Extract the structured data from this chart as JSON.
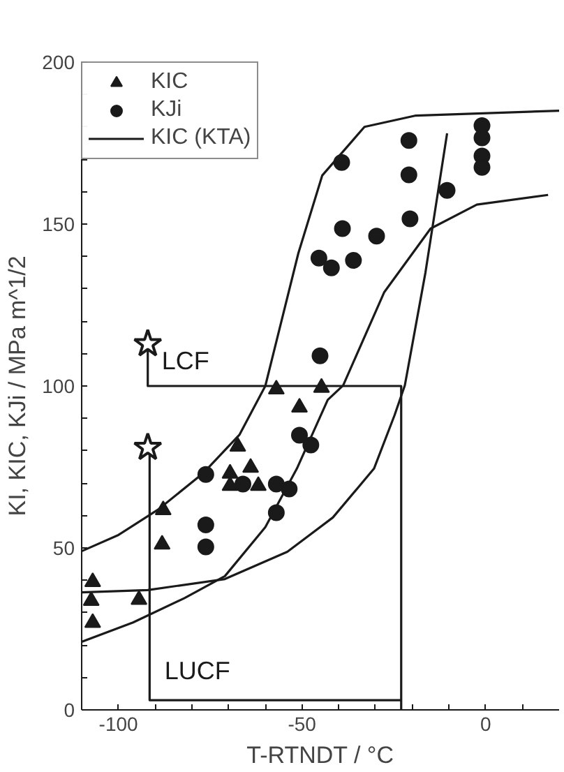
{
  "chart_data": {
    "type": "scatter",
    "xlabel": "T-RTNDT / °C",
    "ylabel": "KI, KIC, KJi / MPa m^1/2",
    "xlim": [
      -110,
      20
    ],
    "ylim": [
      0,
      200
    ],
    "xticks": [
      {
        "value": -110,
        "label": null
      },
      -100,
      {
        "value": -90,
        "label": null
      },
      {
        "value": -80,
        "label": null
      },
      {
        "value": -70,
        "label": null
      },
      {
        "value": -60,
        "label": null
      },
      -50,
      {
        "value": -40,
        "label": null
      },
      {
        "value": -30,
        "label": null
      },
      {
        "value": -20,
        "label": null
      },
      {
        "value": -10,
        "label": null
      },
      0,
      {
        "value": 10,
        "label": null
      }
    ],
    "yticks": [
      0,
      {
        "value": 10,
        "label": null
      },
      {
        "value": 20,
        "label": null
      },
      {
        "value": 30,
        "label": null
      },
      {
        "value": 40,
        "label": null
      },
      50,
      {
        "value": 60,
        "label": null
      },
      {
        "value": 70,
        "label": null
      },
      {
        "value": 80,
        "label": null
      },
      {
        "value": 90,
        "label": null
      },
      100,
      {
        "value": 110,
        "label": null
      },
      {
        "value": 120,
        "label": null
      },
      {
        "value": 130,
        "label": null
      },
      {
        "value": 140,
        "label": null
      },
      150,
      {
        "value": 160,
        "label": null
      },
      {
        "value": 170,
        "label": null
      },
      {
        "value": 180,
        "label": null
      },
      {
        "value": 190,
        "label": null
      },
      200
    ],
    "grid": false,
    "legend": "top left",
    "line_style": "solid",
    "series": [
      {
        "name": "KIC",
        "marker": "triangle",
        "color": "#1a1a1a",
        "x": [
          -107,
          -107.4,
          -107,
          -94.4,
          -87.8,
          -88.1,
          -67.5,
          -69.6,
          -64,
          -69.6,
          -61.9,
          -57,
          -44.7,
          -50.7
        ],
        "values": [
          39.5,
          33.7,
          26.9,
          34,
          61.7,
          51.1,
          81.3,
          73,
          74.8,
          69.2,
          69.2,
          99,
          99.5,
          93.4
        ]
      },
      {
        "name": "KJi",
        "marker": "circle",
        "color": "#1a1a1a",
        "x": [
          -76.2,
          -76.2,
          -76.2,
          -66.1,
          -57,
          -53.5,
          -57,
          -50.7,
          -47.6,
          -45.1,
          -45.4,
          -42,
          -36,
          -39,
          -29.7,
          -39.2,
          -20.9,
          -20.9,
          -20.6,
          -10.5,
          -1,
          -1,
          -1,
          -1
        ],
        "values": [
          72.7,
          57.1,
          50.3,
          69.7,
          69.7,
          68.2,
          60.9,
          84.8,
          81.8,
          109.3,
          139.5,
          136.5,
          138.8,
          148.6,
          146.3,
          169,
          175.8,
          165.2,
          151.6,
          160.4,
          180.4,
          176.6,
          171,
          167.5
        ]
      },
      {
        "name": "KIC (KTA)",
        "type": "line",
        "marker": "none",
        "color": "#1a1a1a",
        "x": [
          -110,
          -100,
          -89,
          -77,
          -67,
          -60,
          -51,
          -44.5,
          -33,
          -19,
          20
        ],
        "values": [
          49,
          54,
          62,
          73,
          85,
          100,
          141,
          165,
          180,
          183.5,
          185
        ]
      },
      {
        "type": "line",
        "marker": "none",
        "color": "#1a1a1a",
        "x": [
          -110,
          -96,
          -82,
          -71,
          -60,
          -51.4,
          -43,
          -38.8,
          -27.6,
          -15,
          -2.4,
          17
        ],
        "values": [
          21,
          27,
          34.5,
          41.3,
          56.4,
          74.5,
          95.7,
          100.2,
          129,
          148.6,
          156,
          159
        ]
      },
      {
        "type": "line",
        "marker": "none",
        "color": "#1a1a1a",
        "x": [
          -110,
          -92,
          -71,
          -54,
          -41.6,
          -30.4,
          -24.8,
          -22,
          -16.4,
          -10.5
        ],
        "values": [
          36.3,
          37,
          40.4,
          48.8,
          59.4,
          74.5,
          91,
          100.2,
          135,
          178
        ]
      },
      {
        "type": "line",
        "marker": "none",
        "color": "#1a1a1a",
        "x": [
          -92,
          -92,
          -23,
          -23
        ],
        "values": [
          113,
          100,
          100,
          0
        ]
      },
      {
        "type": "line",
        "marker": "none",
        "color": "#1a1a1a",
        "x": [
          -91.5,
          -91.5,
          -23
        ],
        "values": [
          81,
          3,
          3
        ]
      },
      {
        "marker": "star",
        "color": "#1a1a1a",
        "x": [
          -92,
          -92
        ],
        "values": [
          113,
          81
        ]
      }
    ],
    "annotations": [
      "LCF",
      "LUCF"
    ]
  }
}
